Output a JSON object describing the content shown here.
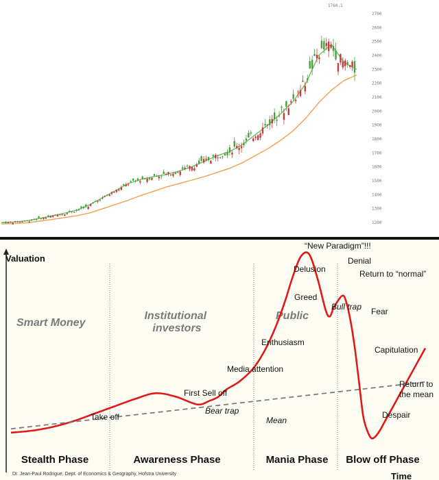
{
  "chart_data": [
    {
      "type": "candlestick",
      "peak_label": "1760.1",
      "y_tick_labels": [
        "2700",
        "2600",
        "2500",
        "2400",
        "2300",
        "2200",
        "2100",
        "2000",
        "1900",
        "1800",
        "1700",
        "1600",
        "1500",
        "1400",
        "1300",
        "1200"
      ],
      "ylim": [
        1200,
        2750
      ],
      "moving_averages": [
        {
          "color": "#6cbf5e",
          "values": [
            1200,
            1204,
            1212,
            1230,
            1248,
            1268,
            1290,
            1330,
            1380,
            1430,
            1480,
            1510,
            1530,
            1545,
            1570,
            1600,
            1640,
            1680,
            1710,
            1760,
            1830,
            1900,
            1980,
            2070,
            2200,
            2400,
            2480,
            2350,
            2300
          ]
        },
        {
          "color": "#f0a050",
          "values": [
            1190,
            1192,
            1198,
            1210,
            1222,
            1236,
            1250,
            1270,
            1300,
            1330,
            1360,
            1395,
            1425,
            1455,
            1480,
            1505,
            1530,
            1560,
            1590,
            1630,
            1680,
            1730,
            1790,
            1860,
            1950,
            2060,
            2150,
            2220,
            2260
          ]
        }
      ],
      "candle_color_up": "#4a9e3f",
      "candle_color_down": "#c43c3c"
    },
    {
      "type": "line",
      "ylabel": "Valuation",
      "xlabel": "Time",
      "phases": [
        "Stealth Phase",
        "Awareness Phase",
        "Mania Phase",
        "Blow off Phase"
      ],
      "participants": [
        "Smart Money",
        "Institutional\ninvestors",
        "Public"
      ],
      "annotations": [
        "Take off",
        "First Sell off",
        "Bear trap",
        "Media attention",
        "Enthusiasm",
        "Greed",
        "Delusion",
        "“New Paradigm”!!!",
        "Denial",
        "Bull trap",
        "Return to “normal”",
        "Fear",
        "Capitulation",
        "Despair",
        "Return to\nthe mean",
        "Mean"
      ],
      "series": [
        {
          "name": "",
          "color": "#e01818",
          "x": [
            0,
            5,
            10,
            15,
            20,
            25,
            30,
            35,
            40,
            45,
            48,
            50,
            52,
            55,
            58,
            60,
            62,
            64,
            66,
            68,
            70,
            72,
            74,
            76,
            77,
            78,
            80,
            81,
            82,
            83,
            84,
            85,
            86,
            87,
            88,
            89,
            90,
            91,
            92,
            93,
            94,
            95,
            96,
            97,
            98,
            99,
            100
          ],
          "y": [
            0.03,
            0.04,
            0.06,
            0.09,
            0.13,
            0.17,
            0.21,
            0.24,
            0.22,
            0.18,
            0.2,
            0.22,
            0.26,
            0.3,
            0.36,
            0.42,
            0.5,
            0.6,
            0.72,
            0.86,
            0.97,
            0.98,
            0.85,
            0.68,
            0.65,
            0.7,
            0.76,
            0.72,
            0.62,
            0.48,
            0.3,
            0.12,
            0.04,
            0.0,
            0.01,
            0.04,
            0.08,
            0.12,
            0.16,
            0.2,
            0.24,
            0.28,
            0.32,
            0.36,
            0.4,
            0.44,
            0.48
          ]
        },
        {
          "name": "Mean",
          "color": "#7a7a7a",
          "style": "dashed",
          "x": [
            0,
            100
          ],
          "y": [
            0.05,
            0.3
          ]
        }
      ]
    }
  ],
  "credit": "Dr. Jean-Paul Rodrigue, Dept. of Economics & Geography, Hofstra University"
}
